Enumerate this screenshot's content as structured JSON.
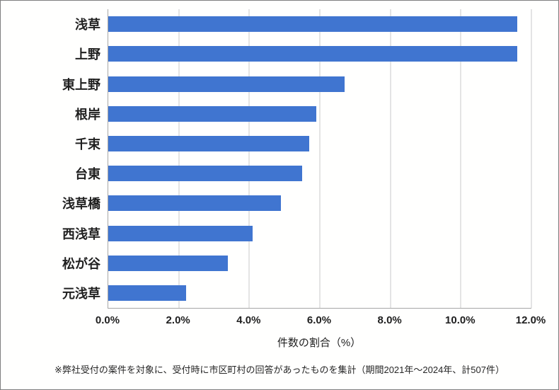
{
  "chart_data": {
    "type": "bar",
    "orientation": "horizontal",
    "categories": [
      "浅草",
      "上野",
      "東上野",
      "根岸",
      "千束",
      "台東",
      "浅草橋",
      "西浅草",
      "松が谷",
      "元浅草"
    ],
    "values": [
      11.6,
      11.6,
      6.7,
      5.9,
      5.7,
      5.5,
      4.9,
      4.1,
      3.4,
      2.2
    ],
    "title": "",
    "xlabel": "件数の割合（%）",
    "ylabel": "",
    "xlim": [
      0,
      12
    ],
    "x_ticks": [
      "0.0%",
      "2.0%",
      "4.0%",
      "6.0%",
      "8.0%",
      "10.0%",
      "12.0%"
    ],
    "grid": true,
    "legend": false
  },
  "footnote": "※弊社受付の案件を対象に、受付時に市区町村の回答があったものを集計（期間2021年～2024年、計507件）",
  "colors": {
    "bar": "#4075D0",
    "grid": "#C9C9C9",
    "axis": "#A6A6A6",
    "text": "#1F1F1F",
    "border": "#7F7F7F"
  }
}
